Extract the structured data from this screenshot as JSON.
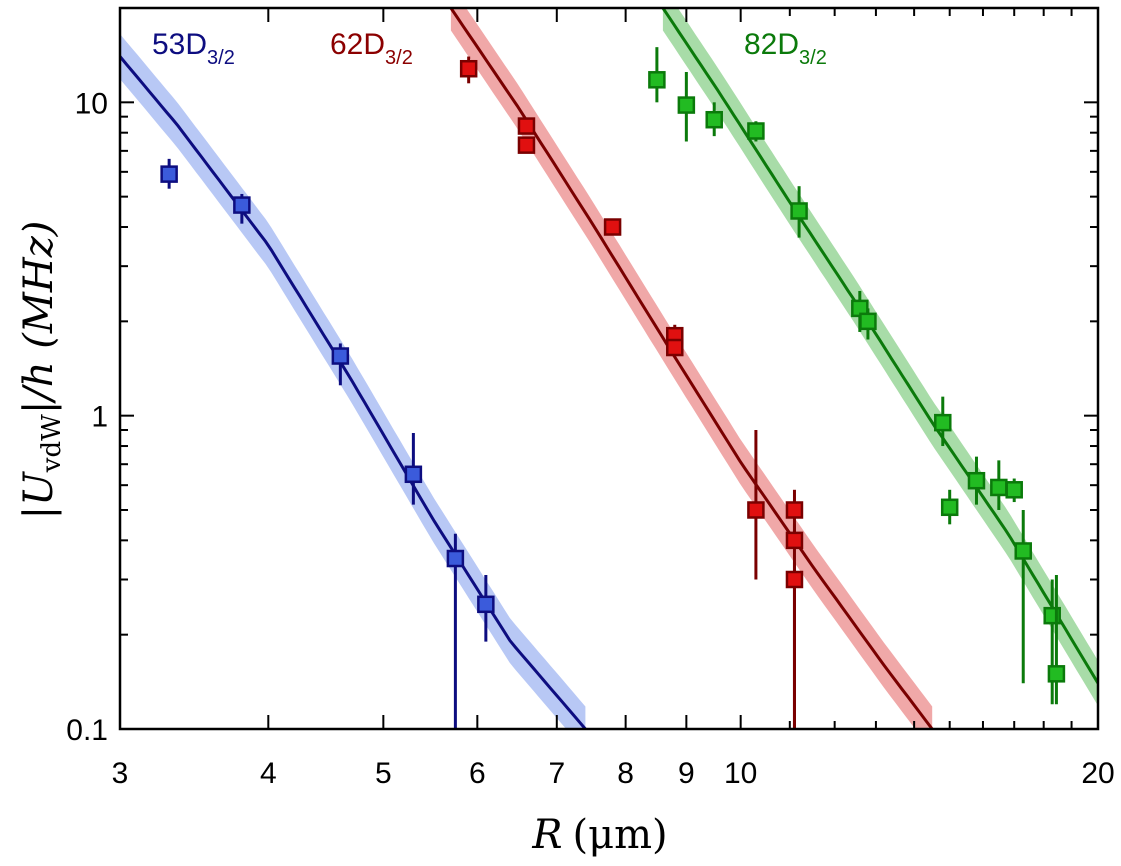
{
  "chart_data": {
    "type": "scatter",
    "title": "",
    "xlabel": {
      "symbol": "R",
      "unit": "(μm)"
    },
    "ylabel": {
      "left": "|U",
      "sub": "vdW",
      "right": "|/h (MHz)"
    },
    "xscale": "log",
    "yscale": "log",
    "xlim": [
      3,
      20
    ],
    "ylim": [
      0.1,
      20
    ],
    "x_ticks": [
      {
        "value": 3,
        "label": "3"
      },
      {
        "value": 4,
        "label": "4"
      },
      {
        "value": 5,
        "label": "5"
      },
      {
        "value": 6,
        "label": "6"
      },
      {
        "value": 7,
        "label": "7"
      },
      {
        "value": 8,
        "label": "8"
      },
      {
        "value": 9,
        "label": "9"
      },
      {
        "value": 10,
        "label": "10"
      },
      {
        "value": 20,
        "label": "20"
      }
    ],
    "x_minor_ticks": [
      11,
      12,
      13,
      14,
      15,
      16,
      17,
      18,
      19
    ],
    "y_ticks": [
      {
        "value": 0.1,
        "label": "0.1"
      },
      {
        "value": 1,
        "label": "1"
      },
      {
        "value": 10,
        "label": "10"
      }
    ],
    "y_minor_ticks": [
      0.2,
      0.3,
      0.4,
      0.5,
      0.6,
      0.7,
      0.8,
      0.9,
      2,
      3,
      4,
      5,
      6,
      7,
      8,
      9,
      20
    ],
    "grid": false,
    "series": [
      {
        "name": "53D3/2",
        "label_main": "53D",
        "label_sub": "3/2",
        "label_placement": "top-left",
        "line_color": "#0d0d80",
        "marker_color": "#3b5bdb",
        "band_color": "#b8c8f5",
        "fit": {
          "x": [
            3.0,
            3.35,
            4.0,
            4.7,
            5.5,
            6.4,
            7.4
          ],
          "y": [
            14.0,
            8.5,
            3.5,
            1.3,
            0.47,
            0.19,
            0.1
          ]
        },
        "band_half_width_factor": 1.18,
        "points": [
          {
            "x": 3.3,
            "y": 5.9,
            "ylo": 5.3,
            "yhi": 6.6
          },
          {
            "x": 3.8,
            "y": 4.7,
            "ylo": 4.1,
            "yhi": 5.1
          },
          {
            "x": 4.6,
            "y": 1.55,
            "ylo": 1.25,
            "yhi": 1.7
          },
          {
            "x": 5.3,
            "y": 0.65,
            "ylo": 0.52,
            "yhi": 0.88
          },
          {
            "x": 5.75,
            "y": 0.35,
            "ylo": 0.1,
            "yhi": 0.42
          },
          {
            "x": 6.1,
            "y": 0.25,
            "ylo": 0.19,
            "yhi": 0.31
          }
        ]
      },
      {
        "name": "62D3/2",
        "label_main": "62D",
        "label_sub": "3/2",
        "label_placement": "top-center",
        "line_color": "#7a0000",
        "marker_color": "#e01010",
        "band_color": "#f0a8a8",
        "fit": {
          "x": [
            5.7,
            6.5,
            7.5,
            8.7,
            10.0,
            11.5,
            13.2,
            14.5
          ],
          "y": [
            20.0,
            9.6,
            4.1,
            1.65,
            0.71,
            0.33,
            0.16,
            0.1
          ]
        },
        "band_half_width_factor": 1.18,
        "points": [
          {
            "x": 5.9,
            "y": 12.8,
            "ylo": 11.5,
            "yhi": 14.0
          },
          {
            "x": 6.6,
            "y": 8.4,
            "ylo": 7.9,
            "yhi": 8.9
          },
          {
            "x": 6.6,
            "y": 7.3,
            "ylo": 6.9,
            "yhi": 7.7
          },
          {
            "x": 7.8,
            "y": 4.0,
            "ylo": 3.8,
            "yhi": 4.2
          },
          {
            "x": 8.8,
            "y": 1.8,
            "ylo": 1.6,
            "yhi": 1.95
          },
          {
            "x": 8.8,
            "y": 1.65,
            "ylo": 1.55,
            "yhi": 1.75
          },
          {
            "x": 10.3,
            "y": 0.5,
            "ylo": 0.3,
            "yhi": 0.9
          },
          {
            "x": 11.1,
            "y": 0.5,
            "ylo": 0.4,
            "yhi": 0.58
          },
          {
            "x": 11.1,
            "y": 0.4,
            "ylo": 0.1,
            "yhi": 0.45
          },
          {
            "x": 11.1,
            "y": 0.3,
            "ylo": 0.1,
            "yhi": 0.34
          }
        ]
      },
      {
        "name": "82D3/2",
        "label_main": "82D",
        "label_sub": "3/2",
        "label_placement": "top-right",
        "line_color": "#0b7a0b",
        "marker_color": "#22bb22",
        "band_color": "#a8dca8",
        "fit": {
          "x": [
            8.6,
            9.6,
            11.0,
            12.5,
            14.5,
            16.8,
            20.0
          ],
          "y": [
            20.0,
            10.7,
            4.8,
            2.3,
            0.95,
            0.42,
            0.14
          ]
        },
        "band_half_width_factor": 1.18,
        "points": [
          {
            "x": 8.5,
            "y": 11.8,
            "ylo": 10.0,
            "yhi": 15.0
          },
          {
            "x": 9.0,
            "y": 9.8,
            "ylo": 7.5,
            "yhi": 12.5
          },
          {
            "x": 9.5,
            "y": 8.8,
            "ylo": 7.8,
            "yhi": 10.0
          },
          {
            "x": 10.3,
            "y": 8.1,
            "ylo": 7.5,
            "yhi": 8.7
          },
          {
            "x": 11.2,
            "y": 4.5,
            "ylo": 3.7,
            "yhi": 5.4
          },
          {
            "x": 12.6,
            "y": 2.2,
            "ylo": 1.85,
            "yhi": 2.5
          },
          {
            "x": 12.8,
            "y": 2.0,
            "ylo": 1.75,
            "yhi": 2.2
          },
          {
            "x": 14.8,
            "y": 0.95,
            "ylo": 0.8,
            "yhi": 1.15
          },
          {
            "x": 15.0,
            "y": 0.51,
            "ylo": 0.45,
            "yhi": 0.58
          },
          {
            "x": 15.8,
            "y": 0.62,
            "ylo": 0.52,
            "yhi": 0.74
          },
          {
            "x": 16.5,
            "y": 0.59,
            "ylo": 0.5,
            "yhi": 0.72
          },
          {
            "x": 17.0,
            "y": 0.58,
            "ylo": 0.53,
            "yhi": 0.63
          },
          {
            "x": 17.3,
            "y": 0.37,
            "ylo": 0.14,
            "yhi": 0.5
          },
          {
            "x": 18.3,
            "y": 0.23,
            "ylo": 0.12,
            "yhi": 0.3
          },
          {
            "x": 18.45,
            "y": 0.15,
            "ylo": 0.12,
            "yhi": 0.31
          }
        ]
      }
    ]
  }
}
